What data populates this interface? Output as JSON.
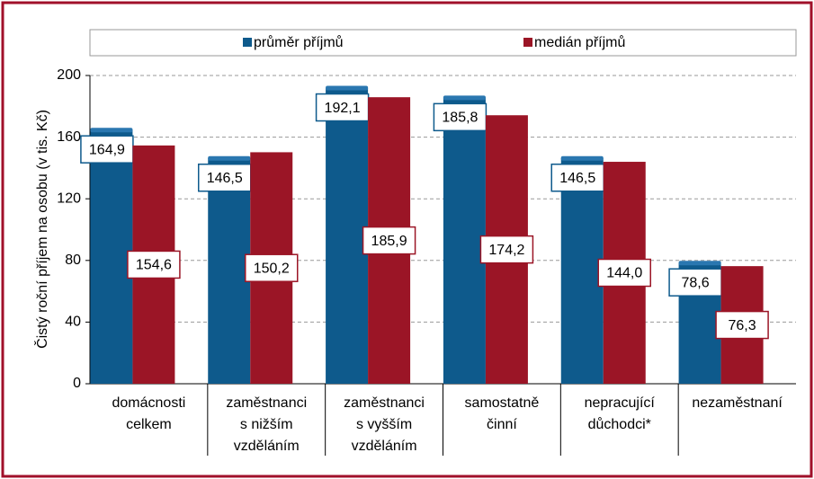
{
  "chart_data": {
    "type": "bar",
    "y_label": "Čistý roční příjem na osobu (v tis. Kč)",
    "categories": [
      [
        "domácnosti",
        "celkem"
      ],
      [
        "zaměstnanci",
        "s nižším",
        "vzděláním"
      ],
      [
        "zaměstnanci",
        "s vyšším",
        "vzděláním"
      ],
      [
        "samostatně",
        "činní"
      ],
      [
        "nepracující",
        "důchodci*"
      ],
      [
        "nezaměstnaní"
      ]
    ],
    "series": [
      {
        "name": "průměr příjmů",
        "color": "#0e5a8c",
        "values": [
          164.9,
          146.5,
          192.1,
          185.8,
          146.5,
          78.6
        ],
        "value_labels": [
          "164,9",
          "146,5",
          "192,1",
          "185,8",
          "146,5",
          "78,6"
        ]
      },
      {
        "name": "medián příjmů",
        "color": "#9b1526",
        "values": [
          154.6,
          150.2,
          185.9,
          174.2,
          144.0,
          76.3
        ],
        "value_labels": [
          "154,6",
          "150,2",
          "185,9",
          "174,2",
          "144,0",
          "76,3"
        ]
      }
    ],
    "ylim": [
      0,
      200
    ],
    "yticks": [
      0,
      40,
      80,
      120,
      160,
      200
    ],
    "grid": true
  }
}
